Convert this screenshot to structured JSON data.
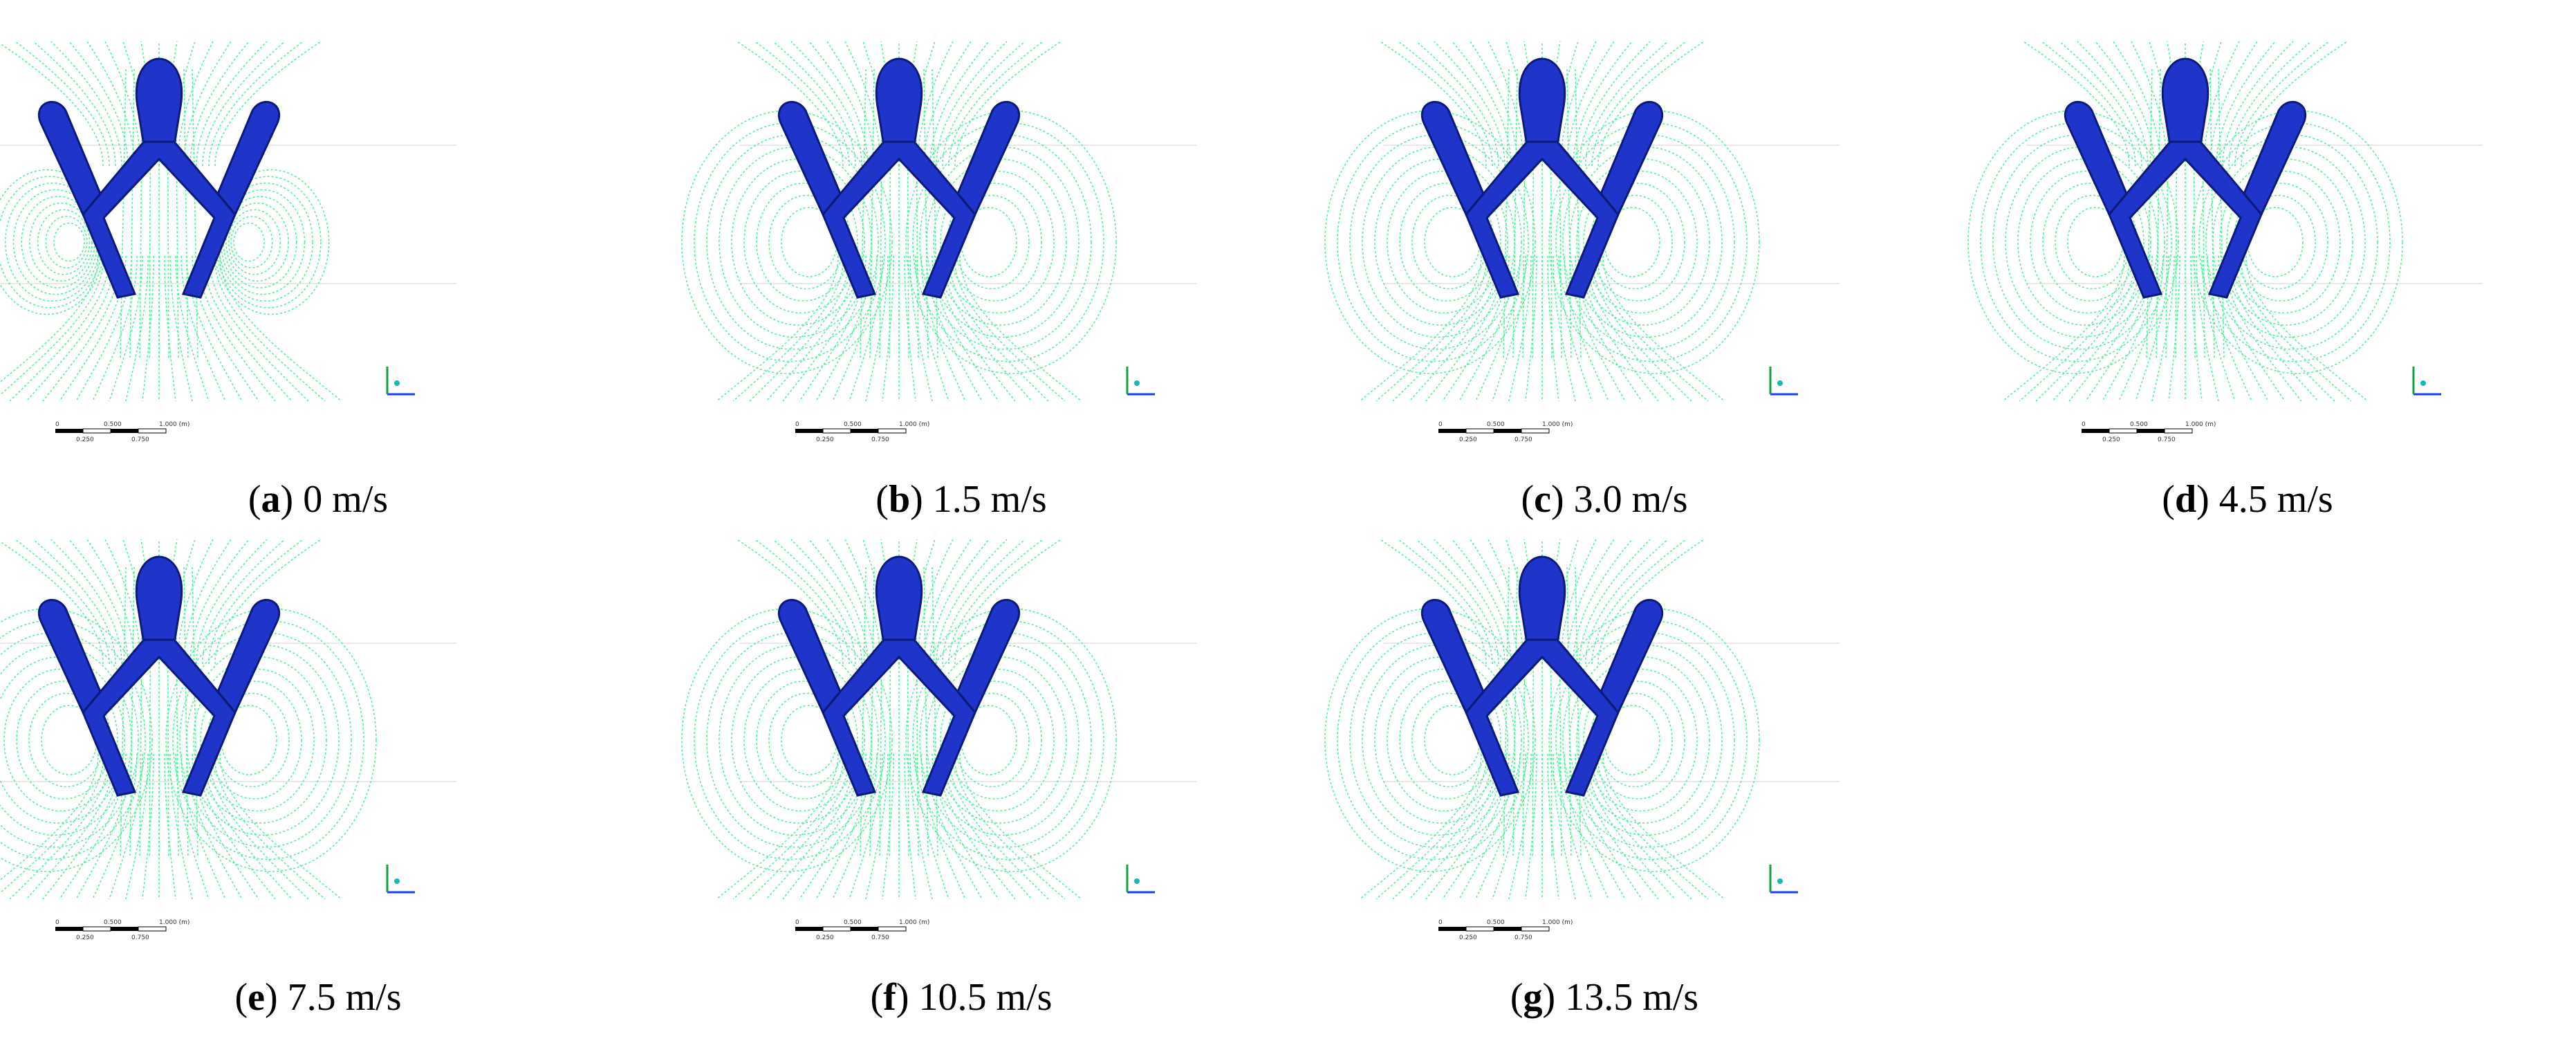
{
  "figure": {
    "panels": [
      {
        "letter": "a",
        "label": "0 m/s",
        "scale": {
          "top_left": "0",
          "top_mid": "0.500",
          "top_right": "1.000 (m)",
          "bot_left": "0.250",
          "bot_right": "0.750"
        }
      },
      {
        "letter": "b",
        "label": "1.5 m/s",
        "scale": {
          "top_left": "0",
          "top_mid": "0.500",
          "top_right": "1.000 (m)",
          "bot_left": "0.250",
          "bot_right": "0.750"
        }
      },
      {
        "letter": "c",
        "label": "3.0 m/s",
        "scale": {
          "top_left": "0",
          "top_mid": "0.500",
          "top_right": "1.000 (m)",
          "bot_left": "0.250",
          "bot_right": "0.750"
        }
      },
      {
        "letter": "d",
        "label": "4.5 m/s",
        "scale": {
          "top_left": "0",
          "top_mid": "0.500",
          "top_right": "1.000 (m)",
          "bot_left": "0.250",
          "bot_right": "0.750"
        }
      },
      {
        "letter": "e",
        "label": "7.5 m/s",
        "scale": {
          "top_left": "0",
          "top_mid": "0.500",
          "top_right": "1.000 (m)",
          "bot_left": "0.250",
          "bot_right": "0.750"
        }
      },
      {
        "letter": "f",
        "label": "10.5 m/s",
        "scale": {
          "top_left": "0",
          "top_mid": "0.500",
          "top_right": "1.000 (m)",
          "bot_left": "0.250",
          "bot_right": "0.750"
        }
      },
      {
        "letter": "g",
        "label": "13.5 m/s",
        "scale": {
          "top_left": "0",
          "top_mid": "0.500",
          "top_right": "1.000 (m)",
          "bot_left": "0.250",
          "bot_right": "0.750"
        }
      }
    ],
    "colors": {
      "body": "#1f35c9",
      "body_dark": "#0b1a7a",
      "streamline": "#3ef08a",
      "axis_x": "#1a3cff",
      "axis_y": "#10a040"
    },
    "icons": {
      "axis": "axis-triad-icon",
      "scale": "scale-bar-icon"
    }
  }
}
